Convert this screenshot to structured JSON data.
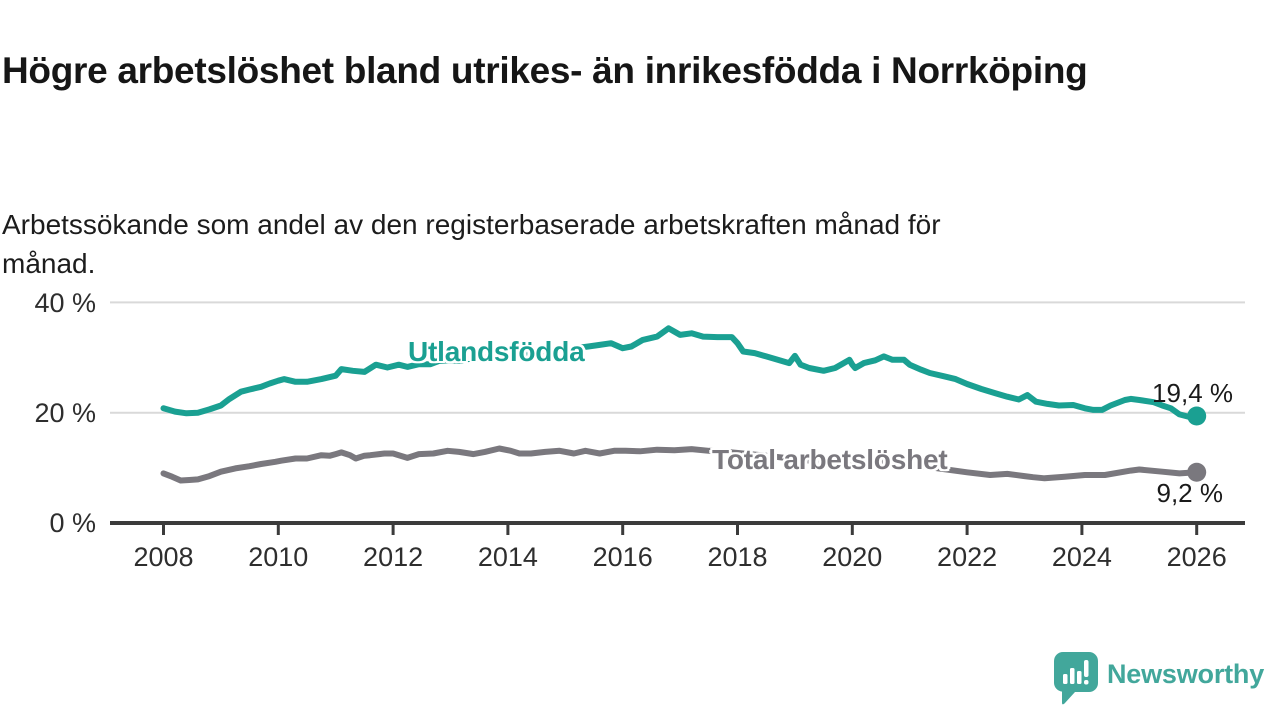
{
  "title": "Högre arbetslöshet bland utrikes- än inrikesfödda i Norrköping",
  "subtitle": "Arbetssökande som andel av den registerbaserade arbetskraften månad för månad.",
  "footer": {
    "brand": "Newsworthy",
    "brand_color": "#42a79b",
    "logo_icon": "speech-bubble-bar-chart"
  },
  "colors": {
    "series_foreign": "#1aa092",
    "series_total": "#7a787e",
    "gridline": "#d9d9d9",
    "axis": "#3b3b3b",
    "annotation_text": "#1a1a1a"
  },
  "chart_data": {
    "type": "line",
    "title": "Högre arbetslöshet bland utrikes- än inrikesfödda i Norrköping",
    "subtitle": "Arbetssökande som andel av den registerbaserade arbetskraften månad för månad.",
    "unit": "%",
    "grid": "horizontal",
    "legend_position": "inline-labels",
    "x_axis": {
      "ticks": [
        2008,
        2010,
        2012,
        2014,
        2016,
        2018,
        2020,
        2022,
        2024,
        2026
      ],
      "range": [
        2008,
        2026.4
      ]
    },
    "y_axis": {
      "ticks": [
        {
          "value": 40,
          "label": "40 %"
        },
        {
          "value": 20,
          "label": "20 %"
        },
        {
          "value": 0,
          "label": "0 %"
        }
      ],
      "range": [
        0,
        42
      ]
    },
    "series": [
      {
        "name": "Utlandsfödda",
        "color": "#1aa092",
        "end_label": "19,4 %",
        "end_value": 19.4,
        "points": [
          [
            2008.0,
            20.8
          ],
          [
            2008.2,
            20.2
          ],
          [
            2008.4,
            19.9
          ],
          [
            2008.6,
            20.0
          ],
          [
            2008.8,
            20.6
          ],
          [
            2009.0,
            21.3
          ],
          [
            2009.15,
            22.5
          ],
          [
            2009.35,
            23.8
          ],
          [
            2009.5,
            24.2
          ],
          [
            2009.7,
            24.7
          ],
          [
            2009.85,
            25.3
          ],
          [
            2010.0,
            25.8
          ],
          [
            2010.1,
            26.1
          ],
          [
            2010.3,
            25.6
          ],
          [
            2010.5,
            25.6
          ],
          [
            2010.75,
            26.1
          ],
          [
            2011.0,
            26.7
          ],
          [
            2011.1,
            27.9
          ],
          [
            2011.3,
            27.6
          ],
          [
            2011.5,
            27.4
          ],
          [
            2011.7,
            28.7
          ],
          [
            2011.9,
            28.2
          ],
          [
            2012.1,
            28.7
          ],
          [
            2012.25,
            28.3
          ],
          [
            2012.45,
            28.8
          ],
          [
            2012.65,
            28.8
          ],
          [
            2012.8,
            29.4
          ],
          [
            2013.0,
            29.5
          ],
          [
            2013.15,
            29.4
          ],
          [
            2013.3,
            29.7
          ],
          [
            2013.6,
            30.0
          ],
          [
            2013.9,
            30.3
          ],
          [
            2014.2,
            30.6
          ],
          [
            2014.5,
            30.9
          ],
          [
            2014.8,
            31.2
          ],
          [
            2015.1,
            31.6
          ],
          [
            2015.4,
            32.0
          ],
          [
            2015.6,
            32.3
          ],
          [
            2015.8,
            32.6
          ],
          [
            2016.0,
            31.7
          ],
          [
            2016.15,
            32.0
          ],
          [
            2016.35,
            33.2
          ],
          [
            2016.6,
            33.8
          ],
          [
            2016.8,
            35.3
          ],
          [
            2016.9,
            34.7
          ],
          [
            2017.0,
            34.1
          ],
          [
            2017.2,
            34.4
          ],
          [
            2017.4,
            33.8
          ],
          [
            2017.65,
            33.7
          ],
          [
            2017.9,
            33.7
          ],
          [
            2018.0,
            32.6
          ],
          [
            2018.1,
            31.1
          ],
          [
            2018.3,
            30.8
          ],
          [
            2018.5,
            30.2
          ],
          [
            2018.7,
            29.6
          ],
          [
            2018.9,
            29.0
          ],
          [
            2019.0,
            30.3
          ],
          [
            2019.1,
            28.7
          ],
          [
            2019.25,
            28.1
          ],
          [
            2019.5,
            27.6
          ],
          [
            2019.7,
            28.1
          ],
          [
            2019.85,
            29.0
          ],
          [
            2019.95,
            29.6
          ],
          [
            2020.0,
            28.7
          ],
          [
            2020.05,
            28.1
          ],
          [
            2020.2,
            29.0
          ],
          [
            2020.4,
            29.5
          ],
          [
            2020.55,
            30.2
          ],
          [
            2020.7,
            29.6
          ],
          [
            2020.9,
            29.6
          ],
          [
            2021.0,
            28.7
          ],
          [
            2021.2,
            27.8
          ],
          [
            2021.35,
            27.2
          ],
          [
            2021.6,
            26.6
          ],
          [
            2021.8,
            26.1
          ],
          [
            2022.0,
            25.2
          ],
          [
            2022.25,
            24.3
          ],
          [
            2022.5,
            23.5
          ],
          [
            2022.7,
            22.9
          ],
          [
            2022.9,
            22.4
          ],
          [
            2023.05,
            23.2
          ],
          [
            2023.2,
            22.0
          ],
          [
            2023.4,
            21.6
          ],
          [
            2023.6,
            21.3
          ],
          [
            2023.85,
            21.4
          ],
          [
            2024.05,
            20.8
          ],
          [
            2024.2,
            20.5
          ],
          [
            2024.35,
            20.5
          ],
          [
            2024.5,
            21.3
          ],
          [
            2024.75,
            22.3
          ],
          [
            2024.85,
            22.5
          ],
          [
            2025.0,
            22.3
          ],
          [
            2025.25,
            21.9
          ],
          [
            2025.4,
            21.3
          ],
          [
            2025.55,
            20.8
          ],
          [
            2025.7,
            19.7
          ],
          [
            2025.85,
            19.3
          ],
          [
            2026.0,
            19.4
          ]
        ]
      },
      {
        "name": "Total arbetslöshet",
        "color": "#7a787e",
        "end_label": "9,2 %",
        "end_value": 9.2,
        "points": [
          [
            2008.0,
            9.0
          ],
          [
            2008.15,
            8.4
          ],
          [
            2008.3,
            7.7
          ],
          [
            2008.45,
            7.8
          ],
          [
            2008.6,
            7.9
          ],
          [
            2008.8,
            8.5
          ],
          [
            2009.0,
            9.3
          ],
          [
            2009.25,
            9.9
          ],
          [
            2009.5,
            10.3
          ],
          [
            2009.7,
            10.7
          ],
          [
            2009.95,
            11.1
          ],
          [
            2010.05,
            11.3
          ],
          [
            2010.3,
            11.7
          ],
          [
            2010.5,
            11.7
          ],
          [
            2010.75,
            12.3
          ],
          [
            2010.9,
            12.2
          ],
          [
            2011.0,
            12.5
          ],
          [
            2011.1,
            12.8
          ],
          [
            2011.25,
            12.3
          ],
          [
            2011.35,
            11.7
          ],
          [
            2011.5,
            12.2
          ],
          [
            2011.6,
            12.3
          ],
          [
            2011.85,
            12.6
          ],
          [
            2012.0,
            12.6
          ],
          [
            2012.25,
            11.8
          ],
          [
            2012.45,
            12.5
          ],
          [
            2012.7,
            12.6
          ],
          [
            2012.95,
            13.1
          ],
          [
            2013.15,
            12.9
          ],
          [
            2013.4,
            12.5
          ],
          [
            2013.6,
            12.9
          ],
          [
            2013.85,
            13.5
          ],
          [
            2014.05,
            13.1
          ],
          [
            2014.2,
            12.6
          ],
          [
            2014.4,
            12.6
          ],
          [
            2014.65,
            12.9
          ],
          [
            2014.9,
            13.1
          ],
          [
            2015.15,
            12.6
          ],
          [
            2015.35,
            13.1
          ],
          [
            2015.6,
            12.6
          ],
          [
            2015.85,
            13.1
          ],
          [
            2016.05,
            13.1
          ],
          [
            2016.3,
            13.0
          ],
          [
            2016.6,
            13.3
          ],
          [
            2016.9,
            13.2
          ],
          [
            2017.2,
            13.4
          ],
          [
            2017.5,
            13.1
          ],
          [
            2017.8,
            12.9
          ],
          [
            2018.1,
            12.6
          ],
          [
            2018.5,
            12.2
          ],
          [
            2019.0,
            11.6
          ],
          [
            2019.5,
            11.0
          ],
          [
            2020.0,
            10.8
          ],
          [
            2020.3,
            11.4
          ],
          [
            2020.6,
            11.2
          ],
          [
            2021.0,
            10.7
          ],
          [
            2021.5,
            9.9
          ],
          [
            2022.0,
            9.2
          ],
          [
            2022.4,
            8.7
          ],
          [
            2022.7,
            8.9
          ],
          [
            2023.0,
            8.5
          ],
          [
            2023.15,
            8.3
          ],
          [
            2023.35,
            8.1
          ],
          [
            2023.7,
            8.4
          ],
          [
            2024.05,
            8.7
          ],
          [
            2024.4,
            8.7
          ],
          [
            2024.85,
            9.5
          ],
          [
            2025.0,
            9.7
          ],
          [
            2025.4,
            9.3
          ],
          [
            2025.7,
            9.0
          ],
          [
            2026.0,
            9.2
          ]
        ]
      }
    ]
  }
}
